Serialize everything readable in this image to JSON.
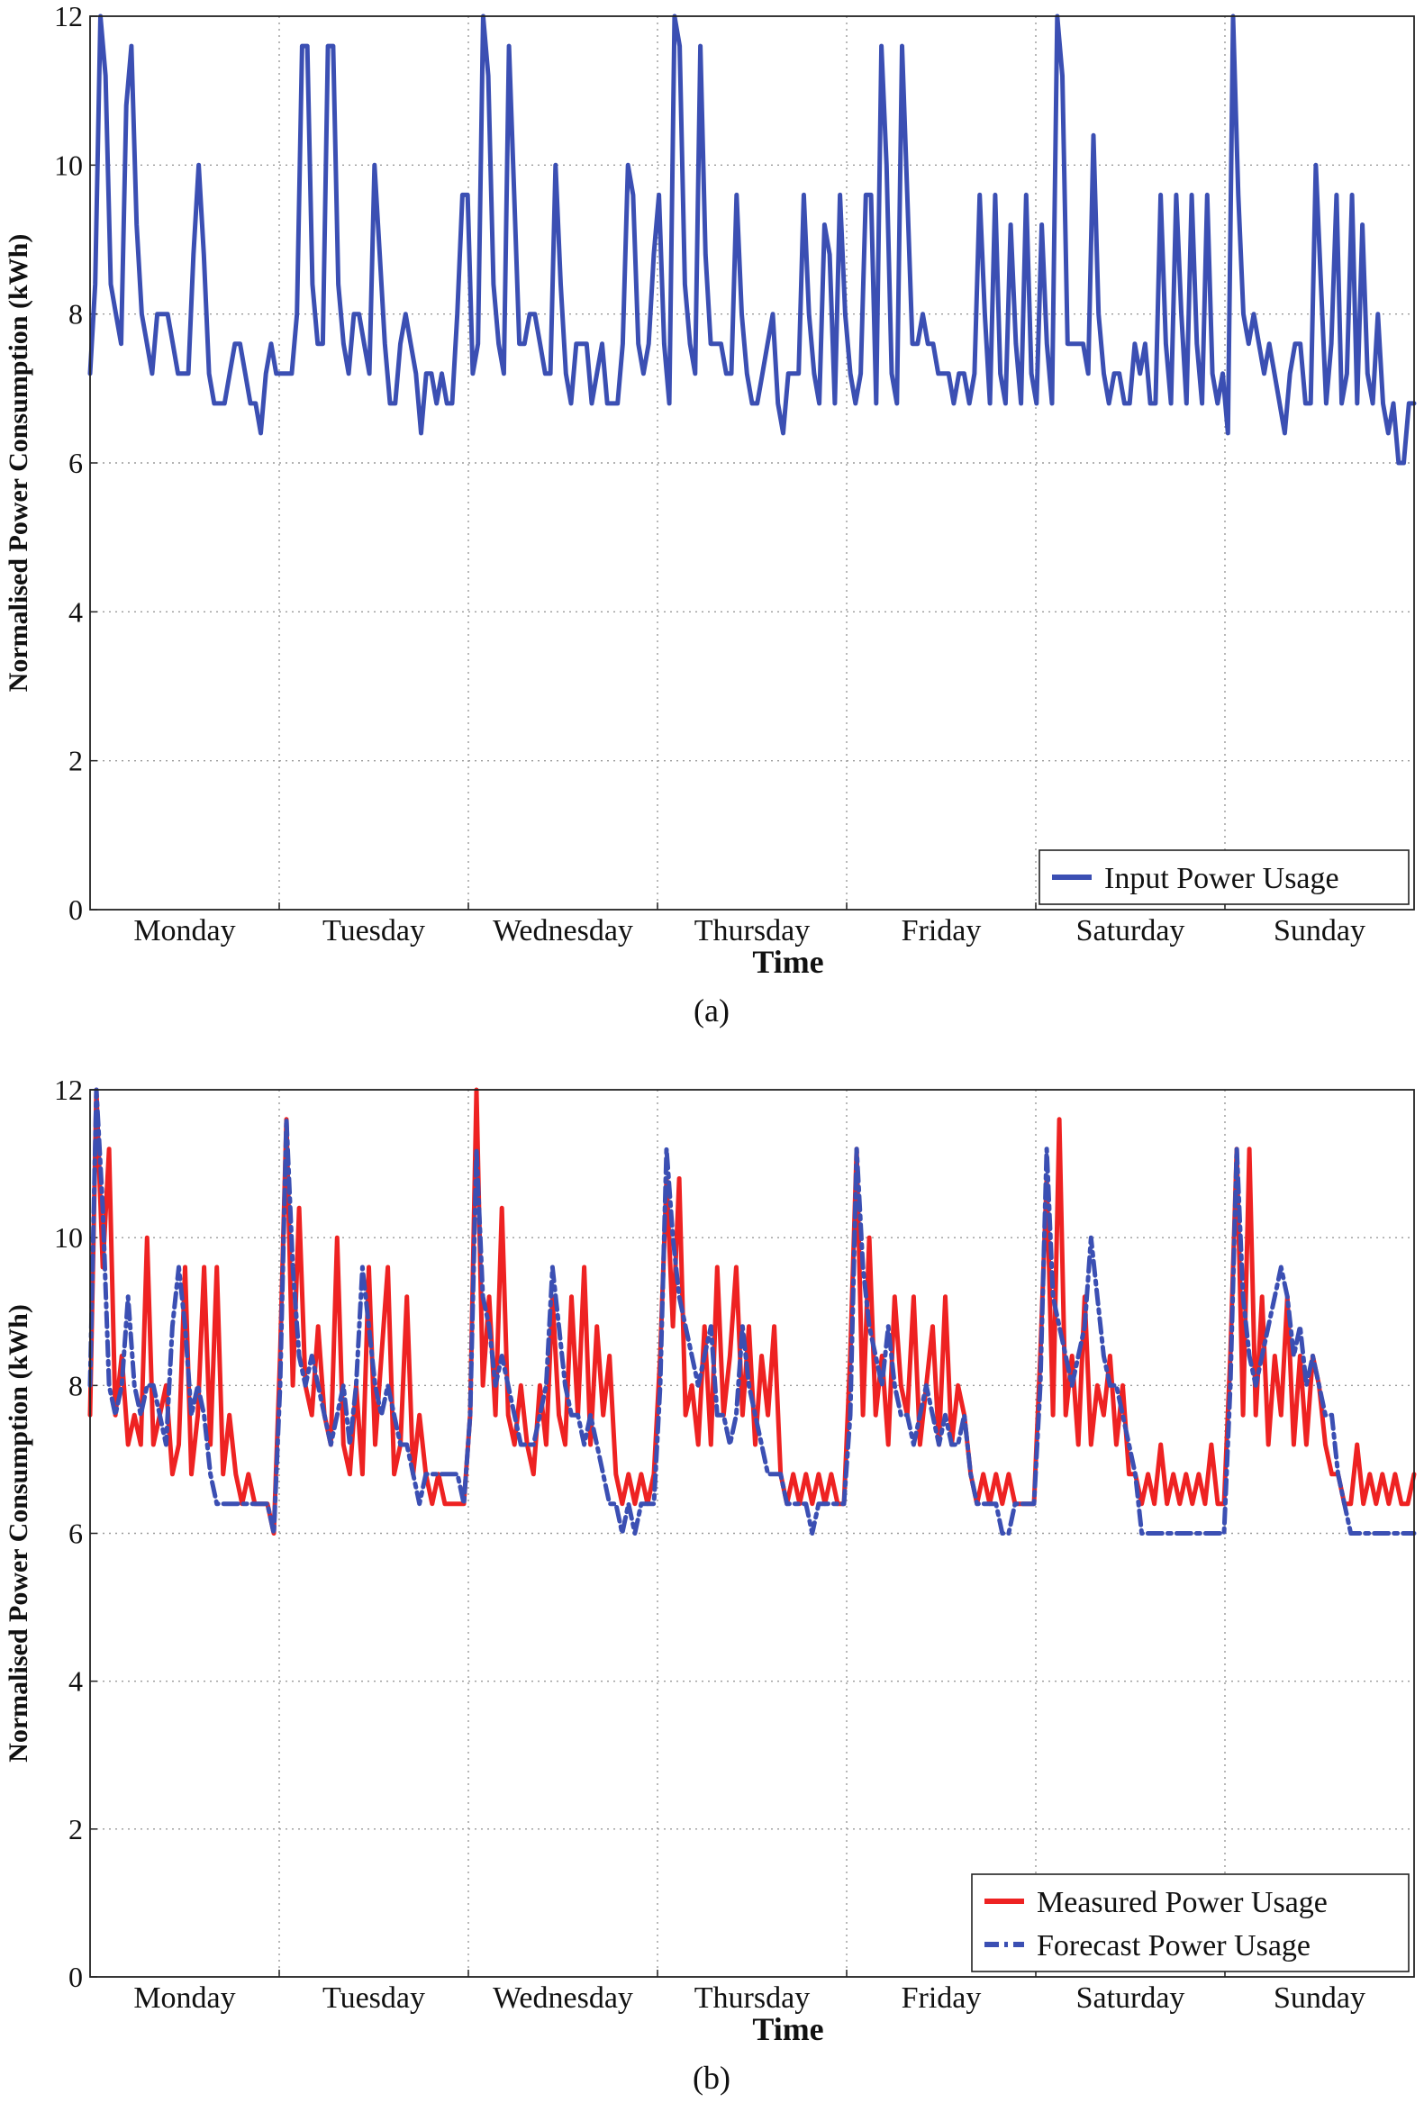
{
  "chart_data": [
    {
      "type": "line",
      "caption": "(a)",
      "xlabel": "Time",
      "ylabel": "Normalised Power Consumption (kWh)",
      "ylim": [
        0,
        12
      ],
      "yticks": [
        "0",
        "2",
        "4",
        "6",
        "8",
        "10",
        "12"
      ],
      "days": [
        "Monday",
        "Tuesday",
        "Wednesday",
        "Thursday",
        "Friday",
        "Saturday",
        "Sunday"
      ],
      "grid": true,
      "legend_position": "bottom-right",
      "series": [
        {
          "name": "Input Power Usage",
          "color": "#3b4fb3",
          "style": "solid",
          "values": [
            7.2,
            8.4,
            12.0,
            11.2,
            8.4,
            8.0,
            7.6,
            10.8,
            11.6,
            9.2,
            8.0,
            7.6,
            7.2,
            8.0,
            8.0,
            8.0,
            7.6,
            7.2,
            7.2,
            7.2,
            8.8,
            10.0,
            8.8,
            7.2,
            6.8,
            6.8,
            6.8,
            7.2,
            7.6,
            7.6,
            7.2,
            6.8,
            6.8,
            6.4,
            7.2,
            7.6,
            7.2,
            7.2,
            7.2,
            7.2,
            8.0,
            11.6,
            11.6,
            8.4,
            7.6,
            7.6,
            11.6,
            11.6,
            8.4,
            7.6,
            7.2,
            8.0,
            8.0,
            7.6,
            7.2,
            10.0,
            8.8,
            7.6,
            6.8,
            6.8,
            7.6,
            8.0,
            7.6,
            7.2,
            6.4,
            7.2,
            7.2,
            6.8,
            7.2,
            6.8,
            6.8,
            8.0,
            9.6,
            9.6,
            7.2,
            7.6,
            12.0,
            11.2,
            8.4,
            7.6,
            7.2,
            11.6,
            9.6,
            7.6,
            7.6,
            8.0,
            8.0,
            7.6,
            7.2,
            7.2,
            10.0,
            8.4,
            7.2,
            6.8,
            7.6,
            7.6,
            7.6,
            6.8,
            7.2,
            7.6,
            6.8,
            6.8,
            6.8,
            7.6,
            10.0,
            9.6,
            7.6,
            7.2,
            7.6,
            8.8,
            9.6,
            7.6,
            6.8,
            12.0,
            11.6,
            8.4,
            7.6,
            7.2,
            11.6,
            8.8,
            7.6,
            7.6,
            7.6,
            7.2,
            7.2,
            9.6,
            8.0,
            7.2,
            6.8,
            6.8,
            7.2,
            7.6,
            8.0,
            6.8,
            6.4,
            7.2,
            7.2,
            7.2,
            9.6,
            8.0,
            7.2,
            6.8,
            9.2,
            8.8,
            6.8,
            9.6,
            8.0,
            7.2,
            6.8,
            7.2,
            9.6,
            9.6,
            6.8,
            11.6,
            10.0,
            7.2,
            6.8,
            11.6,
            9.6,
            7.6,
            7.6,
            8.0,
            7.6,
            7.6,
            7.2,
            7.2,
            7.2,
            6.8,
            7.2,
            7.2,
            6.8,
            7.2,
            9.6,
            8.0,
            6.8,
            9.6,
            7.2,
            6.8,
            9.2,
            7.6,
            6.8,
            9.6,
            7.2,
            6.8,
            9.2,
            7.6,
            6.8,
            12.0,
            11.2,
            7.6,
            7.6,
            7.6,
            7.6,
            7.2,
            10.4,
            8.0,
            7.2,
            6.8,
            7.2,
            7.2,
            6.8,
            6.8,
            7.6,
            7.2,
            7.6,
            6.8,
            6.8,
            9.6,
            7.6,
            6.8,
            9.6,
            8.0,
            6.8,
            9.6,
            7.6,
            6.8,
            9.6,
            7.2,
            6.8,
            7.2,
            6.4,
            12.0,
            9.6,
            8.0,
            7.6,
            8.0,
            7.6,
            7.2,
            7.6,
            7.2,
            6.8,
            6.4,
            7.2,
            7.6,
            7.6,
            6.8,
            6.8,
            10.0,
            8.4,
            6.8,
            7.6,
            9.6,
            6.8,
            7.2,
            9.6,
            6.8,
            9.2,
            7.2,
            6.8,
            8.0,
            6.8,
            6.4,
            6.8,
            6.0,
            6.0,
            6.8,
            6.8
          ]
        }
      ]
    },
    {
      "type": "line",
      "caption": "(b)",
      "xlabel": "Time",
      "ylabel": "Normalised Power Consumption (kWh)",
      "ylim": [
        0,
        12
      ],
      "yticks": [
        "0",
        "2",
        "4",
        "6",
        "8",
        "10",
        "12"
      ],
      "days": [
        "Monday",
        "Tuesday",
        "Wednesday",
        "Thursday",
        "Friday",
        "Saturday",
        "Sunday"
      ],
      "grid": true,
      "legend_position": "bottom-right",
      "series": [
        {
          "name": "Measured Power Usage",
          "color": "#ee2222",
          "style": "solid",
          "values": [
            7.6,
            12.0,
            9.6,
            11.2,
            7.6,
            8.4,
            7.2,
            7.6,
            7.2,
            10.0,
            7.2,
            7.6,
            8.0,
            6.8,
            7.2,
            9.6,
            6.8,
            7.6,
            9.6,
            7.2,
            9.6,
            6.8,
            7.6,
            6.8,
            6.4,
            6.8,
            6.4,
            6.4,
            6.4,
            6.0,
            8.4,
            11.6,
            8.0,
            10.4,
            8.0,
            7.6,
            8.8,
            7.6,
            7.2,
            10.0,
            7.2,
            6.8,
            8.0,
            6.8,
            9.6,
            7.2,
            8.4,
            9.6,
            6.8,
            7.2,
            9.2,
            6.8,
            7.6,
            6.8,
            6.4,
            6.8,
            6.4,
            6.4,
            6.4,
            6.4,
            7.6,
            12.0,
            8.0,
            9.2,
            7.6,
            10.4,
            7.6,
            7.2,
            8.0,
            7.2,
            6.8,
            8.0,
            7.2,
            9.2,
            7.6,
            7.2,
            9.2,
            7.6,
            9.6,
            7.2,
            8.8,
            7.6,
            8.4,
            6.8,
            6.4,
            6.8,
            6.4,
            6.8,
            6.4,
            6.8,
            8.4,
            10.8,
            8.8,
            10.8,
            7.6,
            8.0,
            7.2,
            8.8,
            7.2,
            9.6,
            7.6,
            8.4,
            9.6,
            7.6,
            8.8,
            7.2,
            8.4,
            7.6,
            8.8,
            6.8,
            6.4,
            6.8,
            6.4,
            6.8,
            6.4,
            6.8,
            6.4,
            6.8,
            6.4,
            6.4,
            8.4,
            11.2,
            7.6,
            10.0,
            7.6,
            8.4,
            7.2,
            9.2,
            8.0,
            7.6,
            9.2,
            7.2,
            8.0,
            8.8,
            7.2,
            9.2,
            7.2,
            8.0,
            7.6,
            6.8,
            6.4,
            6.8,
            6.4,
            6.8,
            6.4,
            6.8,
            6.4,
            6.4,
            6.4,
            6.4,
            8.4,
            10.8,
            7.6,
            11.6,
            7.6,
            8.4,
            7.2,
            9.2,
            7.2,
            8.0,
            7.6,
            8.4,
            7.2,
            8.0,
            6.8,
            6.8,
            6.4,
            6.8,
            6.4,
            7.2,
            6.4,
            6.8,
            6.4,
            6.8,
            6.4,
            6.8,
            6.4,
            7.2,
            6.4,
            6.4,
            8.4,
            11.2,
            7.6,
            11.2,
            7.6,
            9.2,
            7.2,
            8.4,
            7.6,
            9.2,
            7.2,
            8.4,
            7.2,
            8.4,
            8.0,
            7.2,
            6.8,
            6.8,
            6.4,
            6.4,
            7.2,
            6.4,
            6.8,
            6.4,
            6.8,
            6.4,
            6.8,
            6.4,
            6.4,
            6.8
          ]
        },
        {
          "name": "Forecast Power Usage",
          "color": "#3b4fb3",
          "style": "dashed",
          "values": [
            8.0,
            12.0,
            10.4,
            8.0,
            7.6,
            8.0,
            9.2,
            8.0,
            7.6,
            8.0,
            8.0,
            7.6,
            7.2,
            8.8,
            9.6,
            8.8,
            7.6,
            8.0,
            7.6,
            6.8,
            6.4,
            6.4,
            6.4,
            6.4,
            6.4,
            6.4,
            6.4,
            6.4,
            6.4,
            6.0,
            8.0,
            11.6,
            9.6,
            8.4,
            8.0,
            8.4,
            8.0,
            7.6,
            7.2,
            7.6,
            8.0,
            7.2,
            8.0,
            9.6,
            8.8,
            8.0,
            7.6,
            8.0,
            7.6,
            7.2,
            7.2,
            6.8,
            6.4,
            6.8,
            6.8,
            6.8,
            6.8,
            6.8,
            6.8,
            6.4,
            7.6,
            11.2,
            9.2,
            8.8,
            8.0,
            8.4,
            8.0,
            7.6,
            7.2,
            7.2,
            7.2,
            7.6,
            8.0,
            9.6,
            8.8,
            8.0,
            7.6,
            7.6,
            7.2,
            7.6,
            7.2,
            6.8,
            6.4,
            6.4,
            6.0,
            6.4,
            6.0,
            6.4,
            6.4,
            6.4,
            8.0,
            11.2,
            10.0,
            9.2,
            8.8,
            8.4,
            8.0,
            8.4,
            8.8,
            7.6,
            7.6,
            7.2,
            7.6,
            8.8,
            8.0,
            7.6,
            7.2,
            6.8,
            6.8,
            6.8,
            6.4,
            6.4,
            6.4,
            6.4,
            6.0,
            6.4,
            6.4,
            6.4,
            6.4,
            6.4,
            7.6,
            11.2,
            9.6,
            8.8,
            8.4,
            8.0,
            8.8,
            8.0,
            7.6,
            7.6,
            7.2,
            7.6,
            8.0,
            7.6,
            7.2,
            7.6,
            7.2,
            7.2,
            7.6,
            6.8,
            6.4,
            6.4,
            6.4,
            6.4,
            6.0,
            6.0,
            6.4,
            6.4,
            6.4,
            6.4,
            8.0,
            11.2,
            9.2,
            8.8,
            8.4,
            8.0,
            8.4,
            8.8,
            10.0,
            9.2,
            8.4,
            8.0,
            8.0,
            7.6,
            7.2,
            6.8,
            6.0,
            6.0,
            6.0,
            6.0,
            6.0,
            6.0,
            6.0,
            6.0,
            6.0,
            6.0,
            6.0,
            6.0,
            6.0,
            6.0,
            8.0,
            11.2,
            9.2,
            8.4,
            8.0,
            8.4,
            8.8,
            9.2,
            9.6,
            9.2,
            8.4,
            8.8,
            8.0,
            8.4,
            8.0,
            7.6,
            7.6,
            6.8,
            6.4,
            6.0,
            6.0,
            6.0,
            6.0,
            6.0,
            6.0,
            6.0,
            6.0,
            6.0,
            6.0,
            6.0
          ]
        }
      ]
    }
  ]
}
